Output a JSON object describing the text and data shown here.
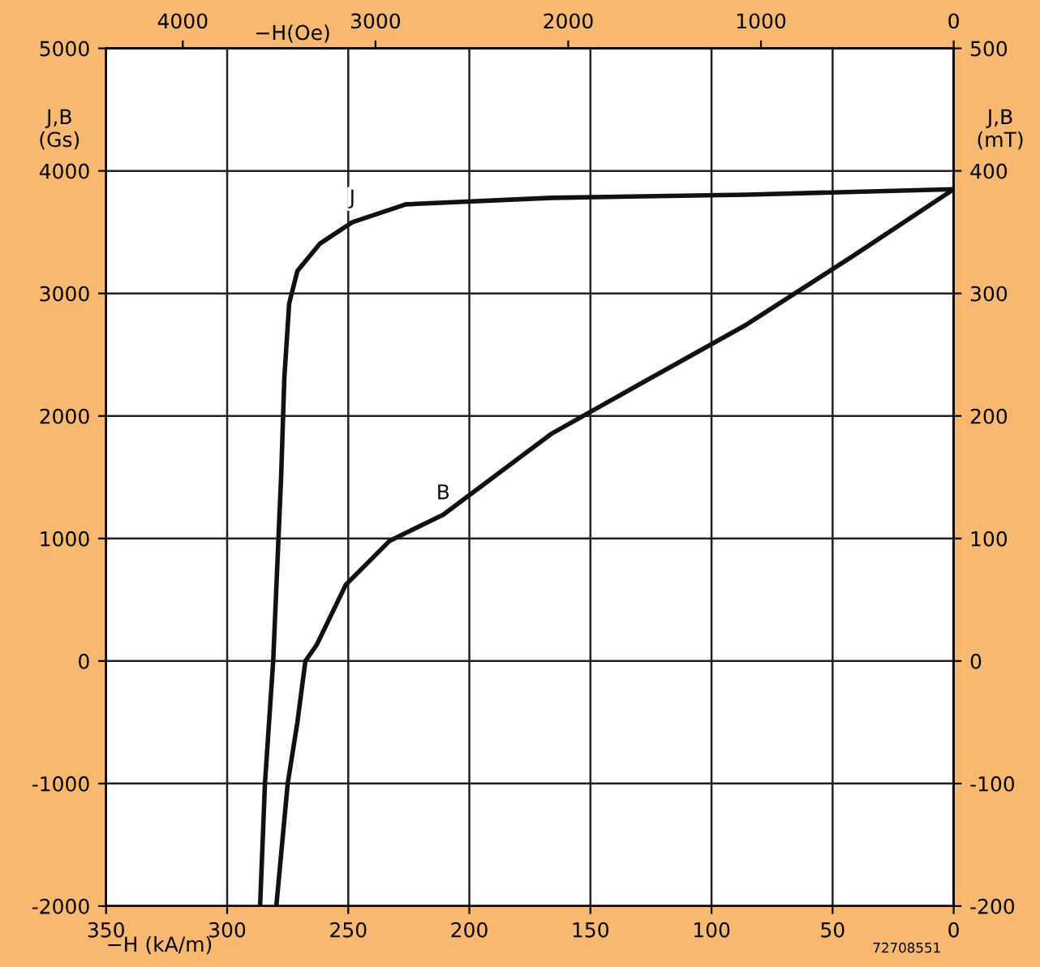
{
  "chart_data": {
    "type": "line",
    "xlabel": "−H (kA/m)",
    "x2label": "−H(Oe)",
    "ylabel": "J,B\n(Gs)",
    "y2label": "J,B\n(mT)",
    "xlim": [
      350,
      0
    ],
    "xticks": [
      350,
      300,
      250,
      200,
      150,
      100,
      50,
      0
    ],
    "x2lim": [
      4398,
      0
    ],
    "x2ticks": [
      4000,
      3000,
      2000,
      1000,
      0
    ],
    "ylim": [
      -2000,
      5000
    ],
    "yticks": [
      -2000,
      -1000,
      0,
      1000,
      2000,
      3000,
      4000,
      5000
    ],
    "y2lim": [
      -200,
      500
    ],
    "y2ticks": [
      -200,
      -100,
      0,
      100,
      200,
      300,
      400,
      500
    ],
    "grid": true,
    "legend": false,
    "marker": "none",
    "line_style": "solid",
    "series": [
      {
        "name": "J",
        "color": "#111111",
        "x": [
          0,
          85.6,
          165.9,
          226.2,
          248.3,
          261.6,
          271.0,
          274.4,
          276.4,
          277.7,
          281.0,
          284.4,
          286.4
        ],
        "values": [
          3850,
          3806,
          3780,
          3727,
          3581,
          3408,
          3183,
          2918,
          2308,
          1512,
          0,
          -1000,
          -2000
        ]
      },
      {
        "name": "B",
        "color": "#111111",
        "x": [
          0,
          42,
          85.6,
          130.5,
          165.9,
          210.8,
          232.9,
          251.0,
          263.0,
          267.7,
          271.0,
          275.0,
          279.7
        ],
        "values": [
          3850,
          3300,
          2745,
          2250,
          1857,
          1194,
          981,
          623,
          133,
          0,
          -500,
          -1000,
          -2000
        ]
      }
    ],
    "annotations": [
      "72708551"
    ]
  }
}
